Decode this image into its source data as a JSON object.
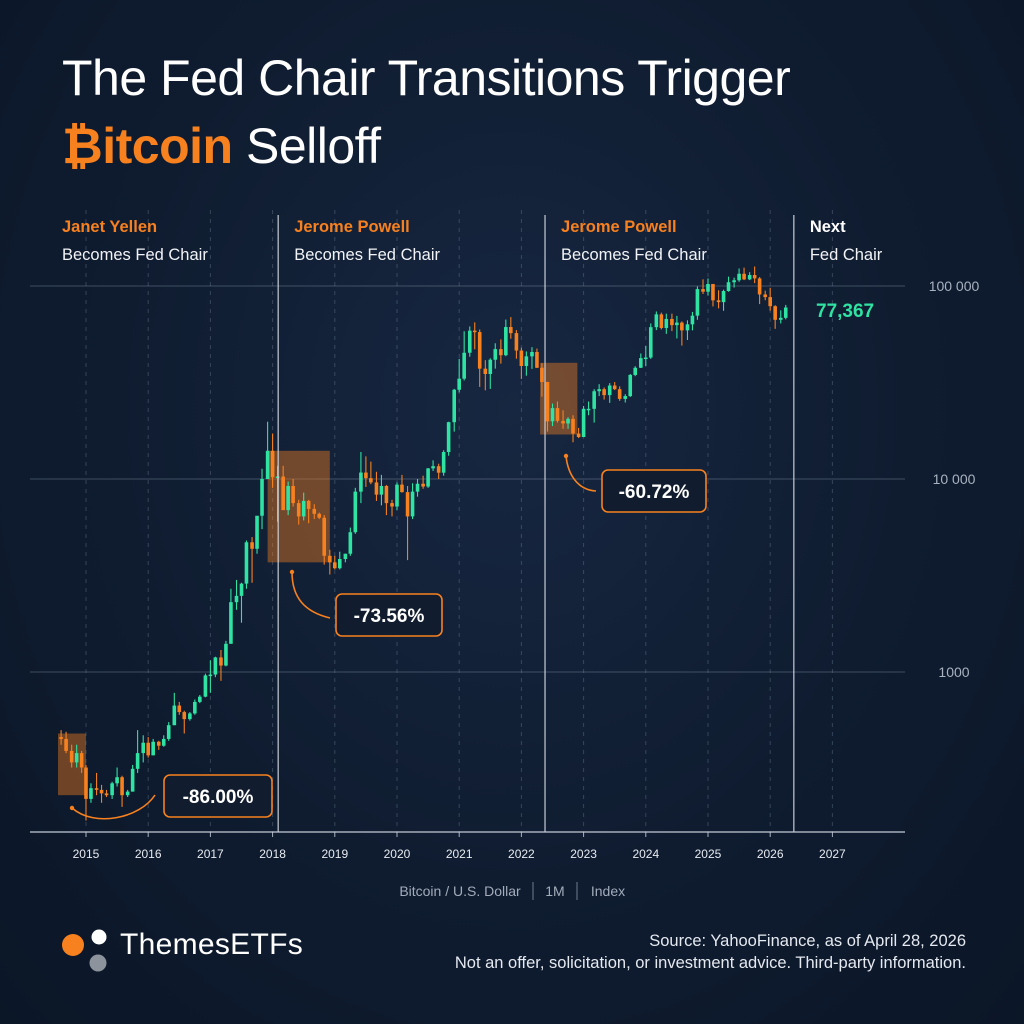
{
  "title": {
    "line1": "The Fed Chair Transitions Trigger",
    "line2_accent": "₿itcoin",
    "line2_rest": "Selloff"
  },
  "colors": {
    "background": "#0f1c30",
    "accent": "#f7811f",
    "up": "#2fe3a3",
    "down": "#f7811f",
    "highlight": "#f7811f",
    "annotation_border": "#f7811f"
  },
  "chart_data": {
    "type": "candlestick",
    "title": "",
    "xlabel": "",
    "ylabel": "",
    "yscale": "log",
    "ylim": [
      220,
      200000
    ],
    "xlim": [
      2014.55,
      2027.9
    ],
    "x_ticks": [
      "2015",
      "2016",
      "2017",
      "2018",
      "2019",
      "2020",
      "2021",
      "2022",
      "2023",
      "2024",
      "2025",
      "2026",
      "2027"
    ],
    "y_ticks": [
      {
        "value": 1000,
        "label": "1000"
      },
      {
        "value": 10000,
        "label": "10 000"
      },
      {
        "value": 100000,
        "label": "100 000"
      }
    ],
    "grid": true,
    "legend": "none",
    "symbol_info": [
      "Bitcoin / U.S. Dollar",
      "1M",
      "Index"
    ],
    "last_price": "77,367",
    "events": [
      {
        "name": "Janet Yellen",
        "text": "Becomes Fed Chair",
        "x": 2014.1
      },
      {
        "name": "Jerome Powell",
        "text": "Becomes Fed Chair",
        "x": 2018.09
      },
      {
        "name": "Jerome Powell",
        "text": "Becomes Fed Chair",
        "x": 2022.38
      },
      {
        "name": "Next",
        "text": "Fed Chair",
        "x": 2026.38
      }
    ],
    "drawdowns": [
      {
        "label": "-86.00%",
        "x0": 2014.55,
        "x1": 2015.0,
        "y_high": 480,
        "y_low": 230
      },
      {
        "label": "-73.56%",
        "x0": 2017.92,
        "x1": 2018.92,
        "y_high": 14000,
        "y_low": 3700
      },
      {
        "label": "-60.72%",
        "x0": 2022.3,
        "x1": 2022.9,
        "y_high": 40000,
        "y_low": 17000
      }
    ],
    "candles": [
      {
        "t": 2014.6,
        "o": 460,
        "h": 500,
        "l": 420,
        "c": 450
      },
      {
        "t": 2014.68,
        "o": 450,
        "h": 490,
        "l": 380,
        "c": 390
      },
      {
        "t": 2014.77,
        "o": 390,
        "h": 420,
        "l": 320,
        "c": 340
      },
      {
        "t": 2014.85,
        "o": 340,
        "h": 420,
        "l": 320,
        "c": 380
      },
      {
        "t": 2014.93,
        "o": 380,
        "h": 390,
        "l": 300,
        "c": 320
      },
      {
        "t": 2015.0,
        "o": 320,
        "h": 330,
        "l": 170,
        "c": 220
      },
      {
        "t": 2015.08,
        "o": 220,
        "h": 265,
        "l": 210,
        "c": 250
      },
      {
        "t": 2015.17,
        "o": 250,
        "h": 300,
        "l": 230,
        "c": 245
      },
      {
        "t": 2015.25,
        "o": 245,
        "h": 260,
        "l": 210,
        "c": 235
      },
      {
        "t": 2015.33,
        "o": 235,
        "h": 245,
        "l": 225,
        "c": 230
      },
      {
        "t": 2015.42,
        "o": 230,
        "h": 270,
        "l": 220,
        "c": 265
      },
      {
        "t": 2015.5,
        "o": 265,
        "h": 320,
        "l": 255,
        "c": 285
      },
      {
        "t": 2015.58,
        "o": 285,
        "h": 290,
        "l": 200,
        "c": 230
      },
      {
        "t": 2015.67,
        "o": 230,
        "h": 245,
        "l": 225,
        "c": 240
      },
      {
        "t": 2015.75,
        "o": 240,
        "h": 330,
        "l": 240,
        "c": 315
      },
      {
        "t": 2015.83,
        "o": 315,
        "h": 500,
        "l": 300,
        "c": 380
      },
      {
        "t": 2015.92,
        "o": 380,
        "h": 470,
        "l": 340,
        "c": 430
      },
      {
        "t": 2016.0,
        "o": 430,
        "h": 460,
        "l": 360,
        "c": 370
      },
      {
        "t": 2016.08,
        "o": 370,
        "h": 450,
        "l": 370,
        "c": 435
      },
      {
        "t": 2016.17,
        "o": 435,
        "h": 440,
        "l": 395,
        "c": 415
      },
      {
        "t": 2016.25,
        "o": 415,
        "h": 470,
        "l": 410,
        "c": 450
      },
      {
        "t": 2016.33,
        "o": 450,
        "h": 550,
        "l": 440,
        "c": 530
      },
      {
        "t": 2016.42,
        "o": 530,
        "h": 780,
        "l": 530,
        "c": 670
      },
      {
        "t": 2016.5,
        "o": 670,
        "h": 700,
        "l": 600,
        "c": 620
      },
      {
        "t": 2016.58,
        "o": 620,
        "h": 630,
        "l": 480,
        "c": 570
      },
      {
        "t": 2016.67,
        "o": 570,
        "h": 620,
        "l": 560,
        "c": 610
      },
      {
        "t": 2016.75,
        "o": 610,
        "h": 720,
        "l": 600,
        "c": 700
      },
      {
        "t": 2016.83,
        "o": 700,
        "h": 760,
        "l": 690,
        "c": 745
      },
      {
        "t": 2016.92,
        "o": 745,
        "h": 980,
        "l": 740,
        "c": 960
      },
      {
        "t": 2017.0,
        "o": 960,
        "h": 1150,
        "l": 780,
        "c": 970
      },
      {
        "t": 2017.08,
        "o": 970,
        "h": 1200,
        "l": 940,
        "c": 1190
      },
      {
        "t": 2017.17,
        "o": 1190,
        "h": 1300,
        "l": 900,
        "c": 1080
      },
      {
        "t": 2017.25,
        "o": 1080,
        "h": 1450,
        "l": 1070,
        "c": 1400
      },
      {
        "t": 2017.33,
        "o": 1400,
        "h": 2700,
        "l": 1400,
        "c": 2300
      },
      {
        "t": 2017.42,
        "o": 2300,
        "h": 3000,
        "l": 2100,
        "c": 2480
      },
      {
        "t": 2017.5,
        "o": 2480,
        "h": 2900,
        "l": 1800,
        "c": 2870
      },
      {
        "t": 2017.58,
        "o": 2870,
        "h": 4800,
        "l": 2700,
        "c": 4700
      },
      {
        "t": 2017.67,
        "o": 4700,
        "h": 5000,
        "l": 2900,
        "c": 4350
      },
      {
        "t": 2017.75,
        "o": 4350,
        "h": 6400,
        "l": 4100,
        "c": 6450
      },
      {
        "t": 2017.83,
        "o": 6450,
        "h": 11300,
        "l": 5500,
        "c": 10000
      },
      {
        "t": 2017.92,
        "o": 10000,
        "h": 19800,
        "l": 10000,
        "c": 14000
      },
      {
        "t": 2018.0,
        "o": 14000,
        "h": 17200,
        "l": 9000,
        "c": 10200
      },
      {
        "t": 2018.08,
        "o": 10200,
        "h": 11700,
        "l": 6000,
        "c": 10300
      },
      {
        "t": 2018.17,
        "o": 10300,
        "h": 11700,
        "l": 6900,
        "c": 6900
      },
      {
        "t": 2018.25,
        "o": 6900,
        "h": 9700,
        "l": 6500,
        "c": 9200
      },
      {
        "t": 2018.33,
        "o": 9200,
        "h": 10000,
        "l": 7200,
        "c": 7500
      },
      {
        "t": 2018.42,
        "o": 7500,
        "h": 7800,
        "l": 5800,
        "c": 6400
      },
      {
        "t": 2018.5,
        "o": 6400,
        "h": 8500,
        "l": 6100,
        "c": 7700
      },
      {
        "t": 2018.58,
        "o": 7700,
        "h": 7800,
        "l": 5900,
        "c": 7000
      },
      {
        "t": 2018.67,
        "o": 7000,
        "h": 7400,
        "l": 6200,
        "c": 6600
      },
      {
        "t": 2018.75,
        "o": 6600,
        "h": 6700,
        "l": 6200,
        "c": 6300
      },
      {
        "t": 2018.83,
        "o": 6300,
        "h": 6500,
        "l": 3600,
        "c": 4000
      },
      {
        "t": 2018.92,
        "o": 4000,
        "h": 4300,
        "l": 3200,
        "c": 3700
      },
      {
        "t": 2019.0,
        "o": 3700,
        "h": 4000,
        "l": 3400,
        "c": 3450
      },
      {
        "t": 2019.08,
        "o": 3450,
        "h": 4200,
        "l": 3400,
        "c": 3850
      },
      {
        "t": 2019.17,
        "o": 3850,
        "h": 4100,
        "l": 3700,
        "c": 4100
      },
      {
        "t": 2019.25,
        "o": 4100,
        "h": 5600,
        "l": 4000,
        "c": 5300
      },
      {
        "t": 2019.33,
        "o": 5300,
        "h": 9000,
        "l": 5200,
        "c": 8600
      },
      {
        "t": 2019.42,
        "o": 8600,
        "h": 13800,
        "l": 7500,
        "c": 10800
      },
      {
        "t": 2019.5,
        "o": 10800,
        "h": 13100,
        "l": 9100,
        "c": 10100
      },
      {
        "t": 2019.58,
        "o": 10100,
        "h": 12300,
        "l": 9400,
        "c": 9600
      },
      {
        "t": 2019.67,
        "o": 9600,
        "h": 10900,
        "l": 7700,
        "c": 8300
      },
      {
        "t": 2019.75,
        "o": 8300,
        "h": 10500,
        "l": 7300,
        "c": 9200
      },
      {
        "t": 2019.83,
        "o": 9200,
        "h": 9300,
        "l": 6500,
        "c": 7500
      },
      {
        "t": 2019.92,
        "o": 7500,
        "h": 7800,
        "l": 6400,
        "c": 7200
      },
      {
        "t": 2020.0,
        "o": 7200,
        "h": 9600,
        "l": 6900,
        "c": 9350
      },
      {
        "t": 2020.08,
        "o": 9350,
        "h": 10500,
        "l": 8500,
        "c": 8550
      },
      {
        "t": 2020.17,
        "o": 8550,
        "h": 9200,
        "l": 3800,
        "c": 6400
      },
      {
        "t": 2020.25,
        "o": 6400,
        "h": 9500,
        "l": 6200,
        "c": 8600
      },
      {
        "t": 2020.33,
        "o": 8600,
        "h": 10000,
        "l": 8100,
        "c": 9450
      },
      {
        "t": 2020.42,
        "o": 9450,
        "h": 10400,
        "l": 8900,
        "c": 9140
      },
      {
        "t": 2020.5,
        "o": 9140,
        "h": 11400,
        "l": 9000,
        "c": 11350
      },
      {
        "t": 2020.58,
        "o": 11350,
        "h": 12500,
        "l": 11000,
        "c": 11650
      },
      {
        "t": 2020.67,
        "o": 11650,
        "h": 12000,
        "l": 10000,
        "c": 10780
      },
      {
        "t": 2020.75,
        "o": 10780,
        "h": 14100,
        "l": 10400,
        "c": 13800
      },
      {
        "t": 2020.83,
        "o": 13800,
        "h": 19800,
        "l": 13200,
        "c": 19700
      },
      {
        "t": 2020.92,
        "o": 19700,
        "h": 29300,
        "l": 17600,
        "c": 29000
      },
      {
        "t": 2021.0,
        "o": 29000,
        "h": 41900,
        "l": 28100,
        "c": 33100
      },
      {
        "t": 2021.08,
        "o": 33100,
        "h": 58300,
        "l": 32400,
        "c": 45100
      },
      {
        "t": 2021.17,
        "o": 45100,
        "h": 61700,
        "l": 43000,
        "c": 58700
      },
      {
        "t": 2021.25,
        "o": 58700,
        "h": 64800,
        "l": 47000,
        "c": 57700
      },
      {
        "t": 2021.33,
        "o": 57700,
        "h": 59500,
        "l": 30000,
        "c": 37300
      },
      {
        "t": 2021.42,
        "o": 37300,
        "h": 41300,
        "l": 28800,
        "c": 35000
      },
      {
        "t": 2021.5,
        "o": 35000,
        "h": 42200,
        "l": 29300,
        "c": 41500
      },
      {
        "t": 2021.58,
        "o": 41500,
        "h": 50500,
        "l": 37300,
        "c": 47100
      },
      {
        "t": 2021.67,
        "o": 47100,
        "h": 52900,
        "l": 39600,
        "c": 43800
      },
      {
        "t": 2021.75,
        "o": 43800,
        "h": 67000,
        "l": 43300,
        "c": 61300
      },
      {
        "t": 2021.83,
        "o": 61300,
        "h": 69000,
        "l": 53300,
        "c": 57000
      },
      {
        "t": 2021.92,
        "o": 57000,
        "h": 59100,
        "l": 42000,
        "c": 46300
      },
      {
        "t": 2022.0,
        "o": 46300,
        "h": 47900,
        "l": 33000,
        "c": 38500
      },
      {
        "t": 2022.08,
        "o": 38500,
        "h": 45800,
        "l": 34300,
        "c": 43200
      },
      {
        "t": 2022.17,
        "o": 43200,
        "h": 48200,
        "l": 37200,
        "c": 45500
      },
      {
        "t": 2022.25,
        "o": 45500,
        "h": 47400,
        "l": 37600,
        "c": 37700
      },
      {
        "t": 2022.33,
        "o": 37700,
        "h": 39800,
        "l": 26700,
        "c": 31800
      },
      {
        "t": 2022.42,
        "o": 31800,
        "h": 31900,
        "l": 17600,
        "c": 19900
      },
      {
        "t": 2022.5,
        "o": 19900,
        "h": 24600,
        "l": 18800,
        "c": 23300
      },
      {
        "t": 2022.58,
        "o": 23300,
        "h": 25200,
        "l": 19600,
        "c": 20000
      },
      {
        "t": 2022.67,
        "o": 20000,
        "h": 22700,
        "l": 18200,
        "c": 19400
      },
      {
        "t": 2022.75,
        "o": 19400,
        "h": 20900,
        "l": 18200,
        "c": 20500
      },
      {
        "t": 2022.83,
        "o": 20500,
        "h": 21400,
        "l": 15500,
        "c": 17200
      },
      {
        "t": 2022.92,
        "o": 17200,
        "h": 18400,
        "l": 16300,
        "c": 16500
      },
      {
        "t": 2023.0,
        "o": 16500,
        "h": 23900,
        "l": 16500,
        "c": 23100
      },
      {
        "t": 2023.08,
        "o": 23100,
        "h": 25200,
        "l": 21400,
        "c": 23100
      },
      {
        "t": 2023.17,
        "o": 23100,
        "h": 29200,
        "l": 19600,
        "c": 28500
      },
      {
        "t": 2023.25,
        "o": 28500,
        "h": 31000,
        "l": 26900,
        "c": 29200
      },
      {
        "t": 2023.33,
        "o": 29200,
        "h": 29800,
        "l": 25800,
        "c": 27200
      },
      {
        "t": 2023.42,
        "o": 27200,
        "h": 31400,
        "l": 24800,
        "c": 30500
      },
      {
        "t": 2023.5,
        "o": 30500,
        "h": 31800,
        "l": 28900,
        "c": 29200
      },
      {
        "t": 2023.58,
        "o": 29200,
        "h": 30200,
        "l": 25400,
        "c": 26000
      },
      {
        "t": 2023.67,
        "o": 26000,
        "h": 27500,
        "l": 24900,
        "c": 26900
      },
      {
        "t": 2023.75,
        "o": 26900,
        "h": 35000,
        "l": 26600,
        "c": 34600
      },
      {
        "t": 2023.83,
        "o": 34600,
        "h": 38400,
        "l": 34100,
        "c": 37700
      },
      {
        "t": 2023.92,
        "o": 37700,
        "h": 44700,
        "l": 37600,
        "c": 42300
      },
      {
        "t": 2024.0,
        "o": 42300,
        "h": 48900,
        "l": 38500,
        "c": 42600
      },
      {
        "t": 2024.08,
        "o": 42600,
        "h": 64000,
        "l": 41900,
        "c": 61200
      },
      {
        "t": 2024.17,
        "o": 61200,
        "h": 73800,
        "l": 59100,
        "c": 71300
      },
      {
        "t": 2024.25,
        "o": 71300,
        "h": 72800,
        "l": 59600,
        "c": 60600
      },
      {
        "t": 2024.33,
        "o": 60600,
        "h": 71900,
        "l": 56500,
        "c": 67500
      },
      {
        "t": 2024.42,
        "o": 67500,
        "h": 71900,
        "l": 58400,
        "c": 62700
      },
      {
        "t": 2024.5,
        "o": 62700,
        "h": 70000,
        "l": 53500,
        "c": 64600
      },
      {
        "t": 2024.58,
        "o": 64600,
        "h": 65600,
        "l": 49100,
        "c": 58900
      },
      {
        "t": 2024.67,
        "o": 58900,
        "h": 66400,
        "l": 52500,
        "c": 63300
      },
      {
        "t": 2024.75,
        "o": 63300,
        "h": 73400,
        "l": 58900,
        "c": 70200
      },
      {
        "t": 2024.83,
        "o": 70200,
        "h": 99500,
        "l": 66800,
        "c": 96400
      },
      {
        "t": 2024.92,
        "o": 96400,
        "h": 108300,
        "l": 90900,
        "c": 93400
      },
      {
        "t": 2025.0,
        "o": 93400,
        "h": 109400,
        "l": 89200,
        "c": 102400
      },
      {
        "t": 2025.08,
        "o": 102400,
        "h": 102500,
        "l": 78400,
        "c": 84300
      },
      {
        "t": 2025.17,
        "o": 84300,
        "h": 95000,
        "l": 76600,
        "c": 82500
      },
      {
        "t": 2025.25,
        "o": 82500,
        "h": 95700,
        "l": 74400,
        "c": 94200
      },
      {
        "t": 2025.33,
        "o": 94200,
        "h": 111800,
        "l": 93400,
        "c": 104600
      },
      {
        "t": 2025.42,
        "o": 104600,
        "h": 110500,
        "l": 98200,
        "c": 107100
      },
      {
        "t": 2025.5,
        "o": 107100,
        "h": 123200,
        "l": 105100,
        "c": 115700
      },
      {
        "t": 2025.58,
        "o": 115700,
        "h": 124500,
        "l": 107300,
        "c": 108200
      },
      {
        "t": 2025.67,
        "o": 108200,
        "h": 117900,
        "l": 107300,
        "c": 114000
      },
      {
        "t": 2025.75,
        "o": 114000,
        "h": 126200,
        "l": 103500,
        "c": 109500
      },
      {
        "t": 2025.83,
        "o": 109500,
        "h": 111200,
        "l": 80600,
        "c": 90400
      },
      {
        "t": 2025.92,
        "o": 90400,
        "h": 94600,
        "l": 84400,
        "c": 87600
      },
      {
        "t": 2026.0,
        "o": 87600,
        "h": 97900,
        "l": 74500,
        "c": 78600
      },
      {
        "t": 2026.08,
        "o": 78600,
        "h": 79500,
        "l": 60000,
        "c": 66800
      },
      {
        "t": 2026.17,
        "o": 66800,
        "h": 74800,
        "l": 64000,
        "c": 68400
      },
      {
        "t": 2026.25,
        "o": 68400,
        "h": 79800,
        "l": 67200,
        "c": 77367
      }
    ]
  },
  "brand": {
    "name": "ThemesETFs"
  },
  "footer": {
    "source": "Source: YahooFinance, as of April 28, 2026",
    "disclaimer": "Not an offer, solicitation, or investment advice. Third-party information."
  }
}
